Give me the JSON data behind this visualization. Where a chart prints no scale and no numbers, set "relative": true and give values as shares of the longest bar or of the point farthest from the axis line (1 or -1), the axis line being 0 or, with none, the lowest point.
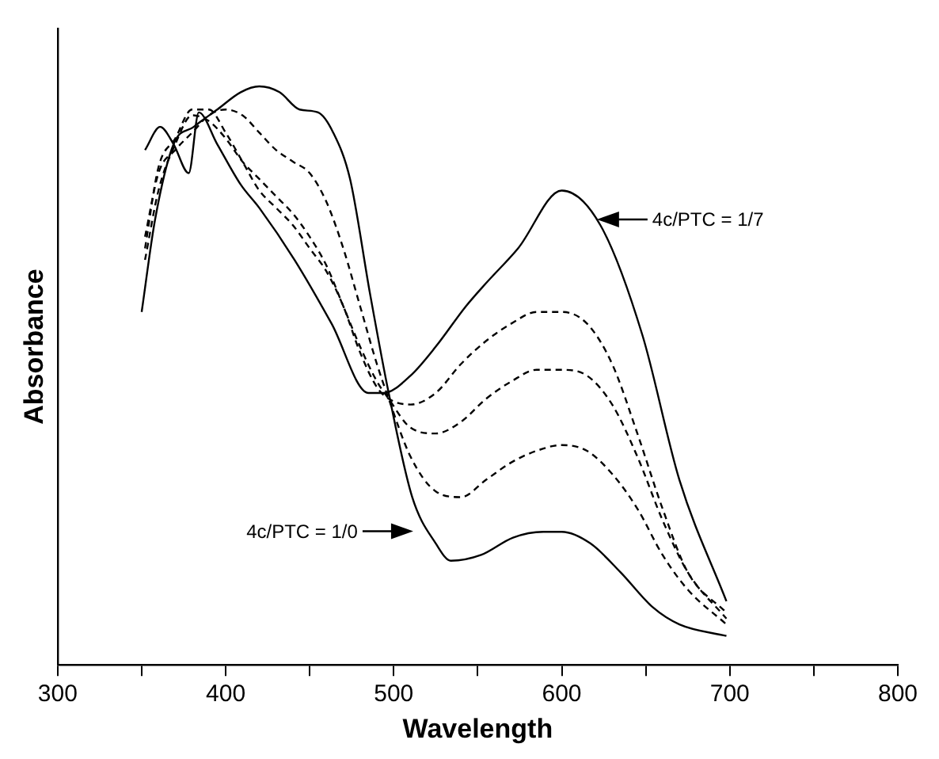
{
  "chart_data": {
    "type": "line",
    "xlabel": "Wavelength",
    "ylabel": "Absorbance",
    "relative": true,
    "xlim": [
      300,
      800
    ],
    "xticks": [
      300,
      {
        "value": 350,
        "label": null
      },
      400,
      {
        "value": 450,
        "label": null
      },
      500,
      {
        "value": 550,
        "label": null
      },
      600,
      {
        "value": 650,
        "label": null
      },
      700,
      {
        "value": 750,
        "label": null
      },
      800
    ],
    "grid": false,
    "legend": false,
    "marker": "none",
    "series": [
      {
        "color": "#000000",
        "line_style": "solid",
        "x": [
          350,
          358,
          369,
          381,
          395,
          409,
          420,
          432,
          444,
          455,
          464,
          474,
          486,
          497,
          511,
          525,
          534,
          552,
          571,
          589,
          600,
          617,
          635,
          654,
          670,
          698
        ],
        "values": [
          0.61,
          0.77,
          0.9,
          0.93,
          0.96,
          0.99,
          1.0,
          0.99,
          0.96,
          0.955,
          0.92,
          0.84,
          0.64,
          0.47,
          0.29,
          0.21,
          0.18,
          0.19,
          0.22,
          0.23,
          0.23,
          0.21,
          0.16,
          0.1,
          0.07,
          0.05
        ]
      },
      {
        "color": "#000000",
        "line_style": "dashed",
        "x": [
          352,
          360,
          370,
          380,
          390,
          400,
          410,
          420,
          430,
          440,
          450,
          460,
          470,
          480,
          490,
          497,
          510,
          525,
          540,
          555,
          570,
          585,
          600,
          615,
          630,
          645,
          660,
          675,
          698
        ],
        "values": [
          0.74,
          0.85,
          0.89,
          0.92,
          0.95,
          0.96,
          0.95,
          0.92,
          0.89,
          0.87,
          0.85,
          0.8,
          0.72,
          0.62,
          0.52,
          0.46,
          0.36,
          0.3,
          0.29,
          0.32,
          0.35,
          0.37,
          0.38,
          0.37,
          0.33,
          0.27,
          0.19,
          0.13,
          0.07
        ]
      },
      {
        "color": "#000000",
        "line_style": "dashed",
        "x": [
          352,
          360,
          370,
          380,
          390,
          400,
          410,
          420,
          430,
          440,
          450,
          460,
          470,
          480,
          490,
          497,
          510,
          525,
          540,
          555,
          570,
          585,
          600,
          615,
          630,
          645,
          660,
          675,
          698
        ],
        "values": [
          0.7,
          0.82,
          0.9,
          0.95,
          0.94,
          0.91,
          0.87,
          0.84,
          0.81,
          0.78,
          0.74,
          0.69,
          0.62,
          0.55,
          0.49,
          0.46,
          0.41,
          0.4,
          0.42,
          0.46,
          0.49,
          0.51,
          0.51,
          0.5,
          0.45,
          0.36,
          0.25,
          0.16,
          0.08
        ]
      },
      {
        "color": "#000000",
        "line_style": "dashed",
        "x": [
          352,
          360,
          370,
          380,
          390,
          400,
          410,
          420,
          430,
          440,
          450,
          460,
          470,
          480,
          490,
          497,
          510,
          525,
          540,
          555,
          570,
          585,
          600,
          615,
          630,
          645,
          660,
          675,
          698
        ],
        "values": [
          0.72,
          0.86,
          0.91,
          0.96,
          0.96,
          0.92,
          0.87,
          0.82,
          0.79,
          0.76,
          0.72,
          0.68,
          0.62,
          0.54,
          0.48,
          0.46,
          0.45,
          0.47,
          0.52,
          0.56,
          0.59,
          0.61,
          0.61,
          0.59,
          0.52,
          0.4,
          0.27,
          0.16,
          0.09
        ]
      },
      {
        "color": "#000000",
        "line_style": "solid",
        "x": [
          352,
          361,
          369,
          378,
          384,
          395,
          409,
          420,
          441,
          463,
          485,
          494,
          510,
          525,
          543,
          555,
          574,
          600,
          623,
          648,
          670,
          698
        ],
        "values": [
          0.89,
          0.93,
          0.9,
          0.85,
          0.955,
          0.9,
          0.83,
          0.79,
          0.7,
          0.59,
          0.47,
          0.47,
          0.5,
          0.55,
          0.62,
          0.66,
          0.72,
          0.82,
          0.76,
          0.57,
          0.32,
          0.11
        ]
      }
    ],
    "annotations": [
      "4c/PTC = 1/7",
      "4c/PTC = 1/0"
    ]
  }
}
